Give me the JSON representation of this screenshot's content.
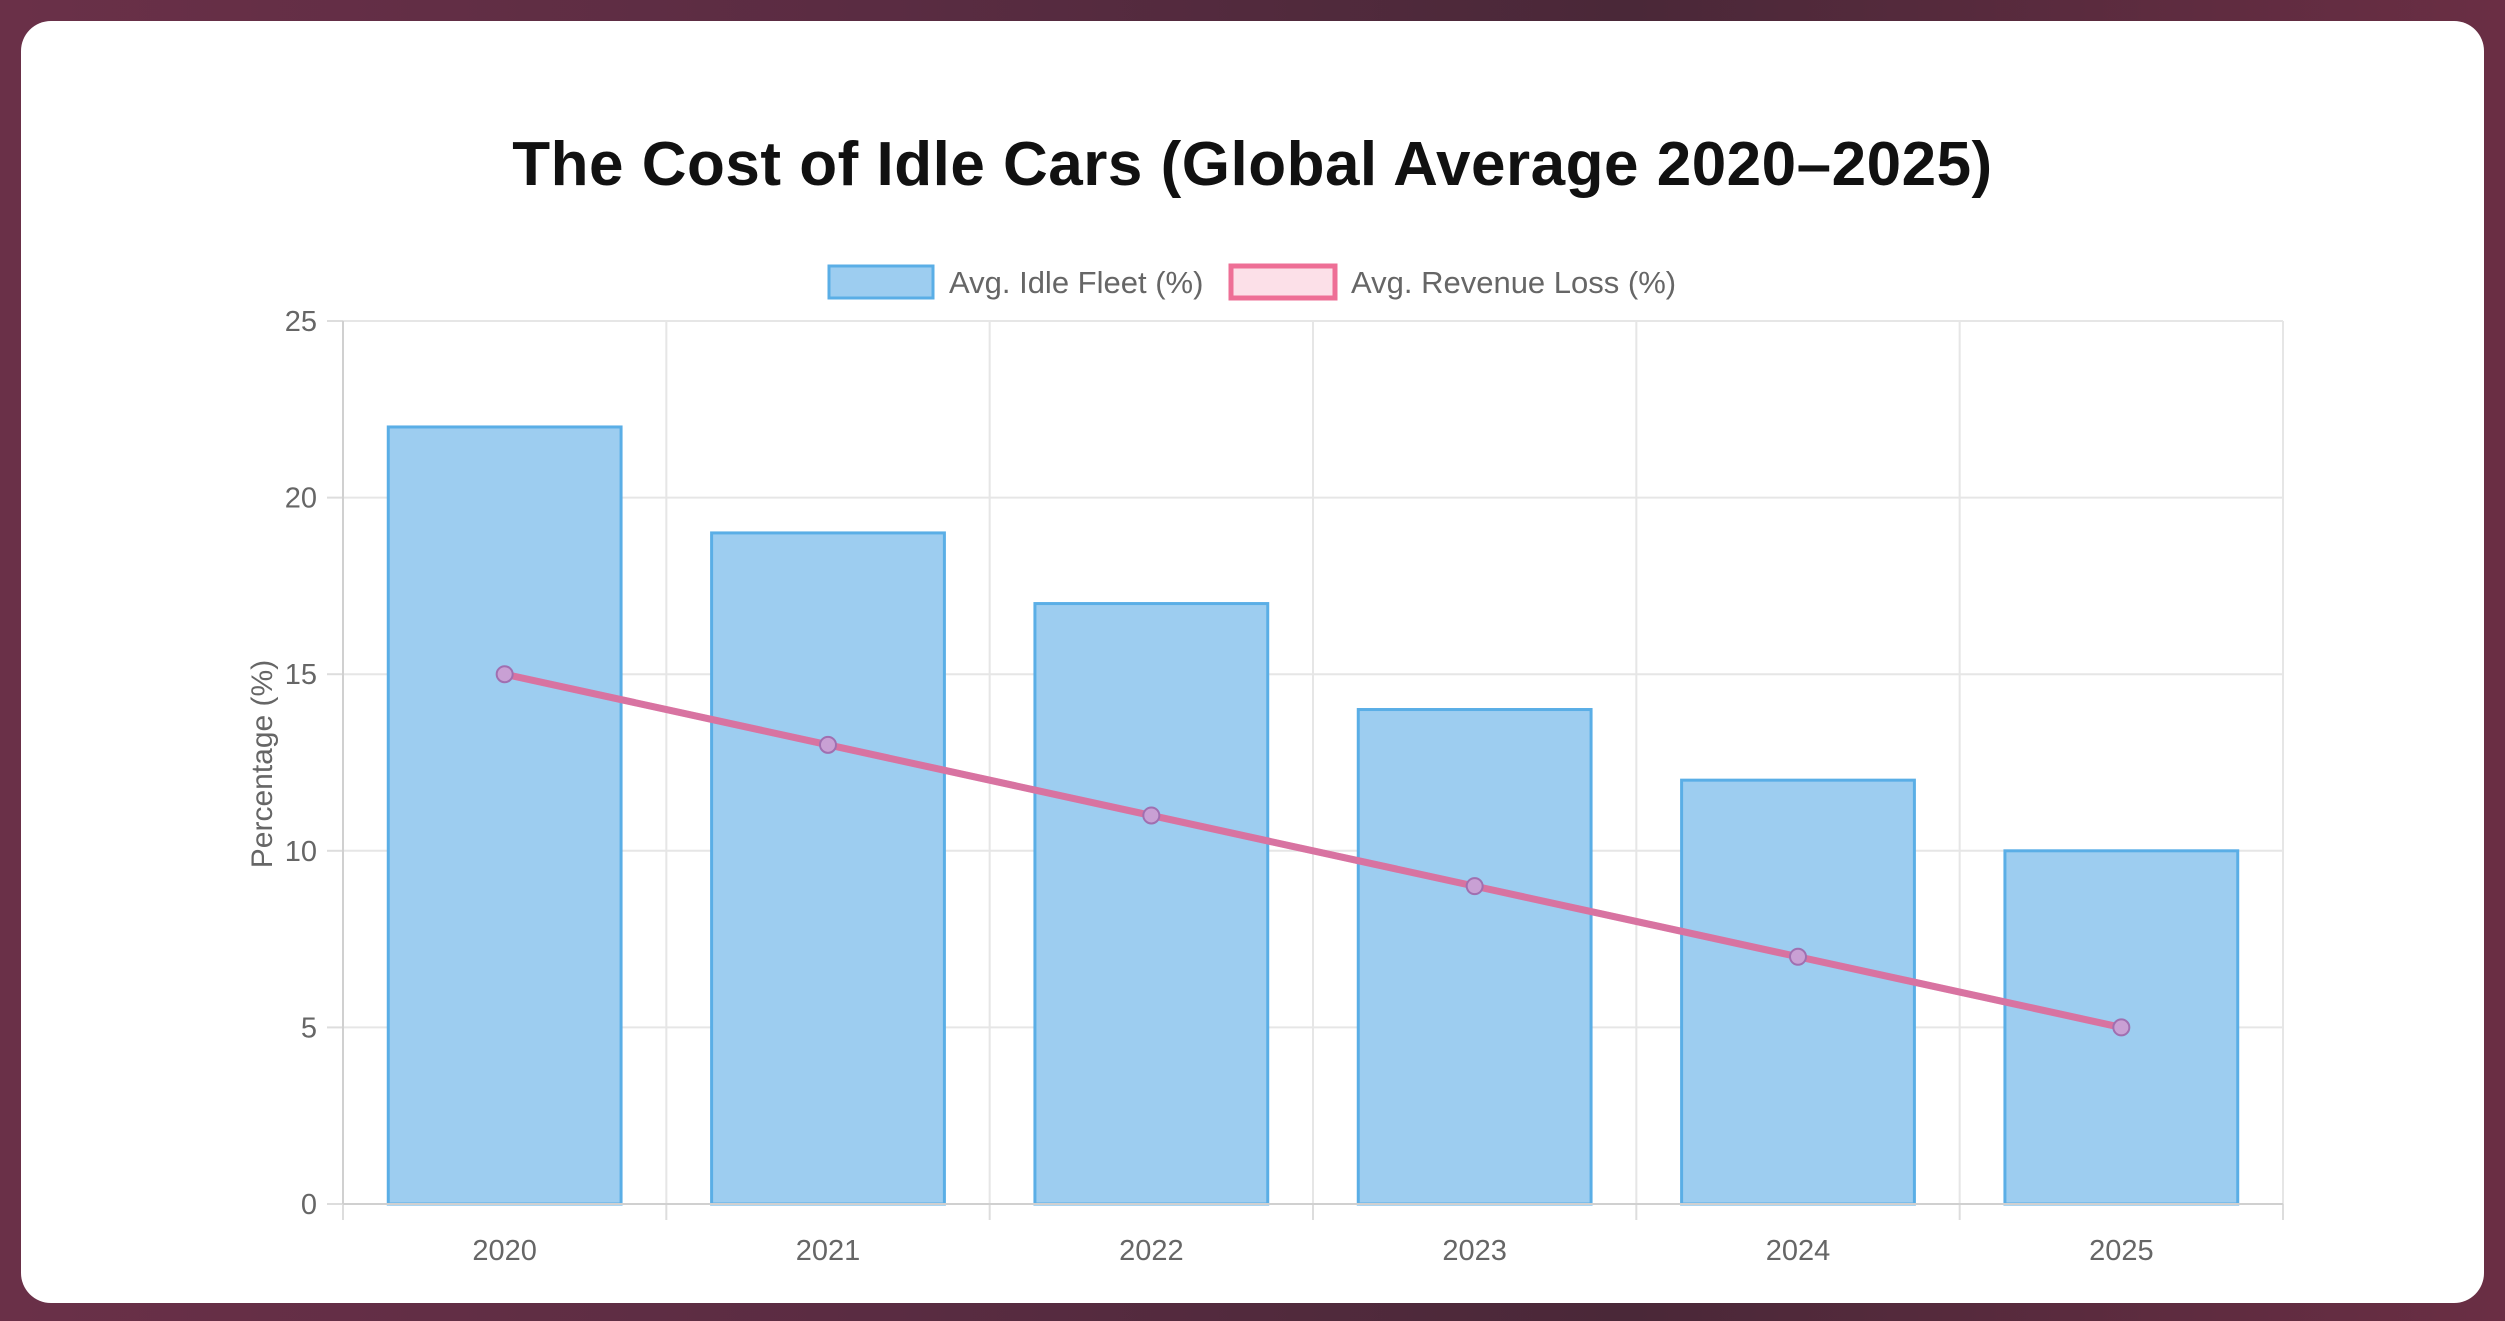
{
  "chart_data": {
    "type": "bar",
    "title": "The Cost of Idle Cars (Global Average 2020–2025)",
    "categories": [
      "2020",
      "2021",
      "2022",
      "2023",
      "2024",
      "2025"
    ],
    "series": [
      {
        "name": "Avg. Idle Fleet (%)",
        "type": "bar",
        "values": [
          22,
          19,
          17,
          14,
          12,
          10
        ],
        "fill": "#9dcdf0",
        "stroke": "#5aaee6"
      },
      {
        "name": "Avg. Revenue Loss (%)",
        "type": "line",
        "values": [
          15,
          13,
          11,
          9,
          7,
          5
        ],
        "stroke": "#ee6f96",
        "point_fill": "#c9a0d4",
        "legend_fill": "#fce0e8"
      }
    ],
    "ylabel": "Percentage (%)",
    "xlabel": "",
    "ylim": [
      0,
      25
    ],
    "yticks": [
      "0",
      "5",
      "10",
      "15",
      "20",
      "25"
    ],
    "grid": true,
    "legend_position": "top-center"
  }
}
